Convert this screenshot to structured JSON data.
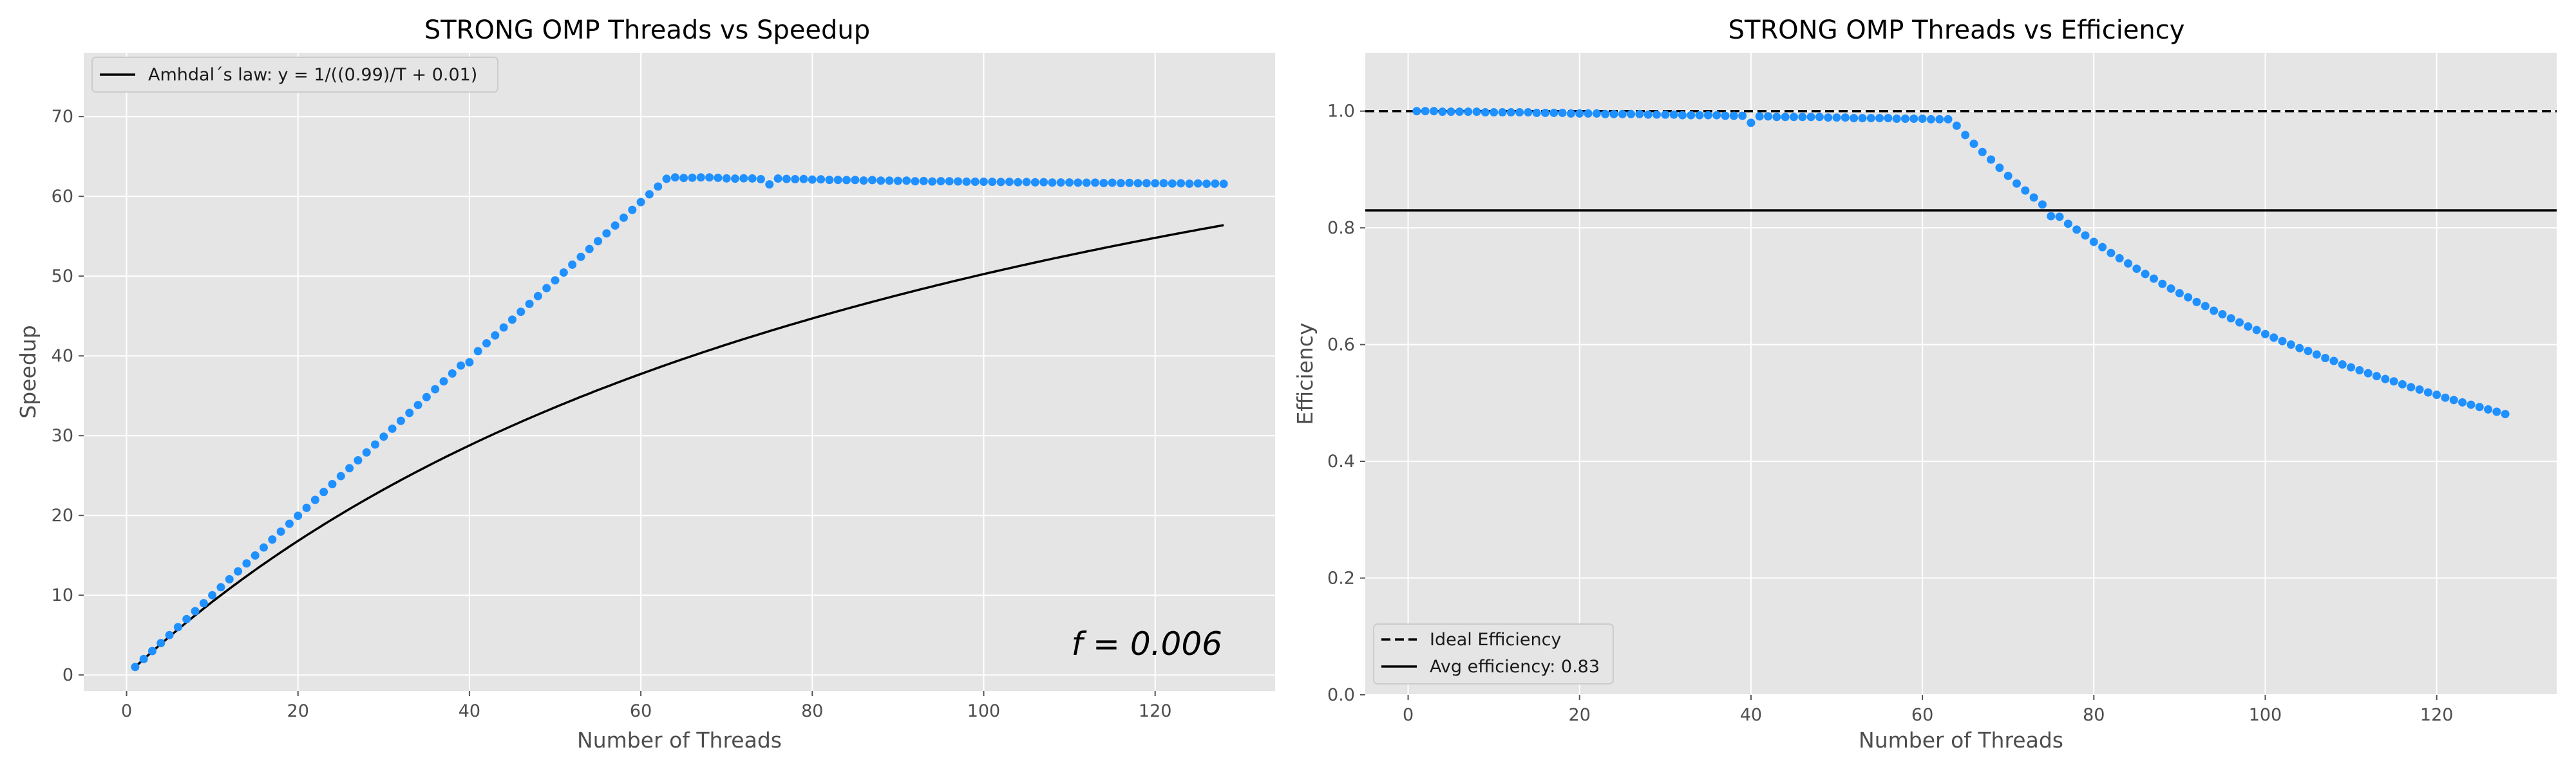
{
  "colors": {
    "background": "#ffffff",
    "plot_bg": "#e5e5e5",
    "grid": "#ffffff",
    "points": "#1e90ff",
    "line": "#000000"
  },
  "chart_data": [
    {
      "type": "scatter",
      "title": "STRONG OMP Threads vs Speedup",
      "xlabel": "Number of Threads",
      "ylabel": "Speedup",
      "xlim": [
        -5,
        134
      ],
      "ylim": [
        -2,
        78
      ],
      "xticks": [
        0,
        20,
        40,
        60,
        80,
        100,
        120
      ],
      "yticks": [
        0,
        10,
        20,
        30,
        40,
        50,
        60,
        70
      ],
      "xtick_labels": [
        "0",
        "20",
        "40",
        "60",
        "80",
        "100",
        "120"
      ],
      "ytick_labels": [
        "0",
        "10",
        "20",
        "30",
        "40",
        "50",
        "60",
        "70"
      ],
      "grid": true,
      "legend_position": "top-left",
      "legend": [
        "Amhdal´s law: y = 1/((0.99)/T + 0.01)"
      ],
      "annotation": "f = 0.006",
      "series": [
        {
          "kind": "points",
          "x": [
            1,
            2,
            3,
            4,
            5,
            6,
            7,
            8,
            9,
            10,
            11,
            12,
            13,
            14,
            15,
            16,
            17,
            18,
            19,
            20,
            21,
            22,
            23,
            24,
            25,
            26,
            27,
            28,
            29,
            30,
            31,
            32,
            33,
            34,
            35,
            36,
            37,
            38,
            39,
            40,
            41,
            42,
            43,
            44,
            45,
            46,
            47,
            48,
            49,
            50,
            51,
            52,
            53,
            54,
            55,
            56,
            57,
            58,
            59,
            60,
            61,
            62,
            63,
            64,
            65,
            66,
            67,
            68,
            69,
            70,
            71,
            72,
            73,
            74,
            75,
            76,
            77,
            78,
            79,
            80,
            81,
            82,
            83,
            84,
            85,
            86,
            87,
            88,
            89,
            90,
            91,
            92,
            93,
            94,
            95,
            96,
            97,
            98,
            99,
            100,
            101,
            102,
            103,
            104,
            105,
            106,
            107,
            108,
            109,
            110,
            111,
            112,
            113,
            114,
            115,
            116,
            117,
            118,
            119,
            120,
            121,
            122,
            123,
            124,
            125,
            126,
            127,
            128
          ],
          "y": [
            1.0,
            2.0,
            3.0,
            4.0,
            5.0,
            6.0,
            7.0,
            8.0,
            9.0,
            10.0,
            11.0,
            12.0,
            12.99,
            13.99,
            14.98,
            15.98,
            16.98,
            17.97,
            18.96,
            19.96,
            20.95,
            21.95,
            22.94,
            23.93,
            24.93,
            25.92,
            26.91,
            27.9,
            28.89,
            29.88,
            30.87,
            31.86,
            32.85,
            33.84,
            34.83,
            35.82,
            36.81,
            37.8,
            38.79,
            39.2,
            40.59,
            41.58,
            42.57,
            43.56,
            44.54,
            45.53,
            46.52,
            47.5,
            48.49,
            49.47,
            50.45,
            51.44,
            52.42,
            53.4,
            54.38,
            55.36,
            56.34,
            57.32,
            58.3,
            59.28,
            60.26,
            61.23,
            62.2,
            62.38,
            62.3,
            62.33,
            62.37,
            62.37,
            62.32,
            62.25,
            62.22,
            62.26,
            62.24,
            62.15,
            61.5,
            62.23,
            62.18,
            62.15,
            62.17,
            62.1,
            62.13,
            62.06,
            62.06,
            62.04,
            62.05,
            61.98,
            62.04,
            61.97,
            61.97,
            61.94,
            61.97,
            61.89,
            61.92,
            61.86,
            61.9,
            61.89,
            61.87,
            61.84,
            61.83,
            61.83,
            61.82,
            61.8,
            61.82,
            61.77,
            61.8,
            61.76,
            61.78,
            61.73,
            61.74,
            61.74,
            61.72,
            61.71,
            61.72,
            61.67,
            61.71,
            61.66,
            61.69,
            61.65,
            61.65,
            61.64,
            61.65,
            61.61,
            61.64,
            61.59,
            61.62,
            61.58,
            61.6,
            61.57
          ]
        },
        {
          "kind": "line",
          "name": "Amhdal´s law: y = 1/((0.99)/T + 0.01)",
          "formula_parallel_fraction": 0.99,
          "formula_serial_fraction": 0.01,
          "x_range": [
            1,
            128
          ]
        }
      ]
    },
    {
      "type": "scatter",
      "title": "STRONG OMP Threads vs Efficiency",
      "xlabel": "Number of Threads",
      "ylabel": "Efficiency",
      "xlim": [
        -5,
        134
      ],
      "ylim": [
        0,
        1.1
      ],
      "xticks": [
        0,
        20,
        40,
        60,
        80,
        100,
        120
      ],
      "yticks": [
        0,
        0.2,
        0.4,
        0.6,
        0.8,
        1.0
      ],
      "xtick_labels": [
        "0",
        "20",
        "40",
        "60",
        "80",
        "100",
        "120"
      ],
      "ytick_labels": [
        "0.0",
        "0.2",
        "0.4",
        "0.6",
        "0.8",
        "1.0"
      ],
      "grid": true,
      "legend_position": "bottom-left",
      "legend": [
        "Ideal Efficiency",
        "Avg efficiency: 0.83"
      ],
      "hlines": [
        {
          "name": "Ideal Efficiency",
          "y": 1.0,
          "style": "dashed"
        },
        {
          "name": "Avg efficiency: 0.83",
          "y": 0.83,
          "style": "solid"
        }
      ],
      "series": [
        {
          "kind": "points",
          "x": [
            1,
            2,
            3,
            4,
            5,
            6,
            7,
            8,
            9,
            10,
            11,
            12,
            13,
            14,
            15,
            16,
            17,
            18,
            19,
            20,
            21,
            22,
            23,
            24,
            25,
            26,
            27,
            28,
            29,
            30,
            31,
            32,
            33,
            34,
            35,
            36,
            37,
            38,
            39,
            40,
            41,
            42,
            43,
            44,
            45,
            46,
            47,
            48,
            49,
            50,
            51,
            52,
            53,
            54,
            55,
            56,
            57,
            58,
            59,
            60,
            61,
            62,
            63,
            64,
            65,
            66,
            67,
            68,
            69,
            70,
            71,
            72,
            73,
            74,
            75,
            76,
            77,
            78,
            79,
            80,
            81,
            82,
            83,
            84,
            85,
            86,
            87,
            88,
            89,
            90,
            91,
            92,
            93,
            94,
            95,
            96,
            97,
            98,
            99,
            100,
            101,
            102,
            103,
            104,
            105,
            106,
            107,
            108,
            109,
            110,
            111,
            112,
            113,
            114,
            115,
            116,
            117,
            118,
            119,
            120,
            121,
            122,
            123,
            124,
            125,
            126,
            127,
            128
          ],
          "y": [
            1.0,
            1.0,
            1.0,
            0.999,
            0.999,
            0.999,
            0.999,
            0.999,
            0.998,
            0.998,
            0.998,
            0.998,
            0.998,
            0.998,
            0.997,
            0.997,
            0.997,
            0.997,
            0.996,
            0.996,
            0.996,
            0.996,
            0.995,
            0.995,
            0.995,
            0.995,
            0.995,
            0.994,
            0.994,
            0.994,
            0.994,
            0.993,
            0.993,
            0.993,
            0.993,
            0.993,
            0.992,
            0.992,
            0.992,
            0.98,
            0.991,
            0.991,
            0.99,
            0.99,
            0.99,
            0.99,
            0.99,
            0.99,
            0.989,
            0.989,
            0.989,
            0.988,
            0.988,
            0.988,
            0.988,
            0.988,
            0.987,
            0.987,
            0.987,
            0.987,
            0.986,
            0.986,
            0.986,
            0.975,
            0.959,
            0.944,
            0.93,
            0.917,
            0.903,
            0.889,
            0.876,
            0.864,
            0.852,
            0.84,
            0.82,
            0.819,
            0.807,
            0.797,
            0.787,
            0.776,
            0.767,
            0.757,
            0.748,
            0.739,
            0.73,
            0.721,
            0.713,
            0.704,
            0.696,
            0.688,
            0.681,
            0.673,
            0.666,
            0.658,
            0.652,
            0.645,
            0.638,
            0.631,
            0.625,
            0.618,
            0.612,
            0.606,
            0.6,
            0.594,
            0.589,
            0.583,
            0.577,
            0.572,
            0.566,
            0.561,
            0.556,
            0.551,
            0.546,
            0.541,
            0.537,
            0.532,
            0.527,
            0.523,
            0.518,
            0.514,
            0.509,
            0.505,
            0.501,
            0.497,
            0.493,
            0.489,
            0.485,
            0.481
          ]
        }
      ]
    }
  ]
}
